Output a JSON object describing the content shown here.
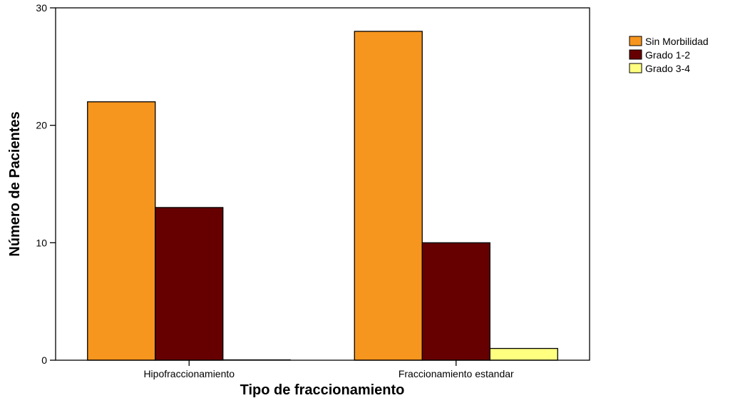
{
  "chart_data": {
    "type": "bar",
    "title": "",
    "xlabel": "Tipo de fraccionamiento",
    "ylabel": "Número de Pacientes",
    "categories": [
      "Hipofraccionamiento",
      "Fraccionamiento estandar"
    ],
    "series": [
      {
        "name": "Sin Morbilidad",
        "values": [
          22,
          28
        ],
        "color": "#f7961e"
      },
      {
        "name": "Grado 1-2",
        "values": [
          13,
          10
        ],
        "color": "#660000"
      },
      {
        "name": "Grado 3-4",
        "values": [
          0,
          1
        ],
        "color": "#ffff80"
      }
    ],
    "ylim": [
      0,
      30
    ],
    "yticks": [
      0,
      10,
      20,
      30
    ],
    "grid": false,
    "legend_position": "top-right"
  }
}
